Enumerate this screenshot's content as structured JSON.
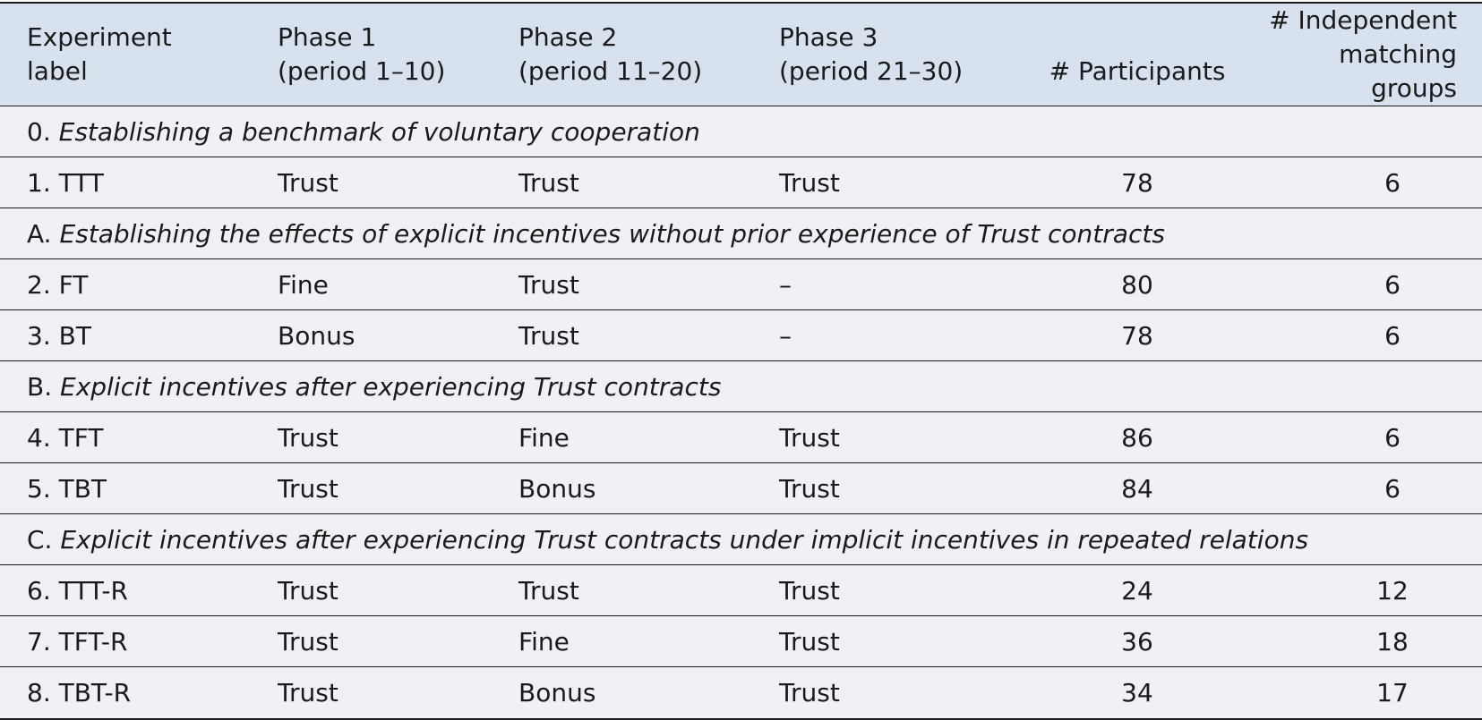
{
  "columns": [
    {
      "line1": "Experiment",
      "line2": "label"
    },
    {
      "line1": "Phase 1",
      "line2": "(period 1–10)"
    },
    {
      "line1": "Phase 2",
      "line2": "(period 11–20)"
    },
    {
      "line1": "Phase 3",
      "line2": "(period 21–30)"
    },
    {
      "line1": "",
      "line2": "# Participants"
    },
    {
      "line1": "# Independent",
      "line2": "matching groups"
    }
  ],
  "sections": [
    {
      "prefix": "0.",
      "title": "Establishing a benchmark of voluntary cooperation"
    },
    {
      "prefix": "A.",
      "title": "Establishing the effects of explicit incentives without prior experience of Trust contracts"
    },
    {
      "prefix": "B.",
      "title": "Explicit incentives after experiencing Trust contracts"
    },
    {
      "prefix": "C.",
      "title": "Explicit incentives after experiencing Trust contracts under implicit incentives in repeated relations"
    }
  ],
  "rows": [
    {
      "label": "1. TTT",
      "p1": "Trust",
      "p2": "Trust",
      "p3": "Trust",
      "participants": "78",
      "groups": "6"
    },
    {
      "label": "2. FT",
      "p1": "Fine",
      "p2": "Trust",
      "p3": "–",
      "participants": "80",
      "groups": "6"
    },
    {
      "label": "3. BT",
      "p1": "Bonus",
      "p2": "Trust",
      "p3": "–",
      "participants": "78",
      "groups": "6"
    },
    {
      "label": "4. TFT",
      "p1": "Trust",
      "p2": "Fine",
      "p3": "Trust",
      "participants": "86",
      "groups": "6"
    },
    {
      "label": "5. TBT",
      "p1": "Trust",
      "p2": "Bonus",
      "p3": "Trust",
      "participants": "84",
      "groups": "6"
    },
    {
      "label": "6. TTT-R",
      "p1": "Trust",
      "p2": "Trust",
      "p3": "Trust",
      "participants": "24",
      "groups": "12"
    },
    {
      "label": "7. TFT-R",
      "p1": "Trust",
      "p2": "Fine",
      "p3": "Trust",
      "participants": "36",
      "groups": "18"
    },
    {
      "label": "8. TBT-R",
      "p1": "Trust",
      "p2": "Bonus",
      "p3": "Trust",
      "participants": "34",
      "groups": "17"
    }
  ]
}
